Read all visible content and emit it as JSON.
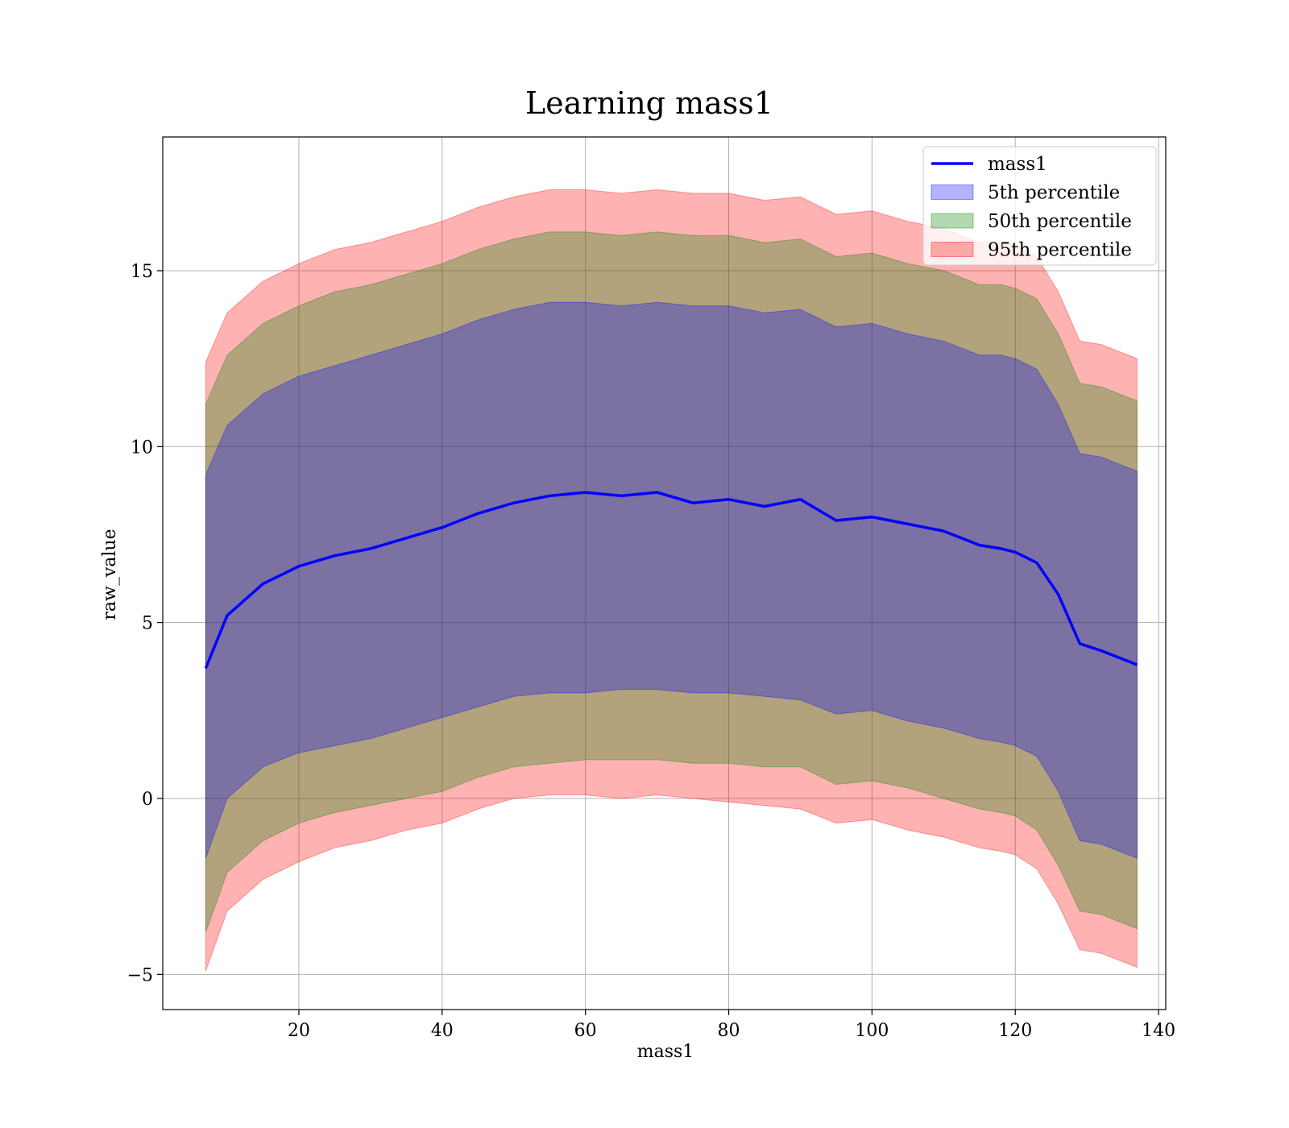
{
  "chart_data": {
    "type": "area",
    "title": "Learning mass1",
    "xlabel": "mass1",
    "ylabel": "raw_value",
    "xlim": [
      1,
      141
    ],
    "ylim": [
      -6,
      18.8
    ],
    "xticks": [
      20,
      40,
      60,
      80,
      100,
      120,
      140
    ],
    "xtick_labels": [
      "20",
      "40",
      "60",
      "80",
      "100",
      "120",
      "140"
    ],
    "yticks": [
      -5,
      0,
      5,
      10,
      15
    ],
    "ytick_labels": [
      "−5",
      "0",
      "5",
      "10",
      "15"
    ],
    "grid": true,
    "legend_position": "top-right",
    "x": [
      7,
      10,
      15,
      20,
      25,
      30,
      35,
      40,
      45,
      50,
      55,
      60,
      65,
      70,
      75,
      80,
      85,
      90,
      95,
      100,
      105,
      110,
      115,
      118,
      120,
      123,
      126,
      129,
      132,
      137
    ],
    "series": [
      {
        "name": "mass1",
        "kind": "line",
        "color": "#0000ff",
        "values": [
          3.7,
          5.2,
          6.1,
          6.6,
          6.9,
          7.1,
          7.4,
          7.7,
          8.1,
          8.4,
          8.6,
          8.7,
          8.6,
          8.7,
          8.4,
          8.5,
          8.3,
          8.5,
          7.9,
          8.0,
          7.8,
          7.6,
          7.2,
          7.1,
          7.0,
          6.7,
          5.8,
          4.4,
          4.2,
          3.8
        ]
      },
      {
        "name": "5th percentile",
        "kind": "band",
        "color": "#0000ff",
        "opacity": 0.3,
        "lower": [
          -1.7,
          0.0,
          0.9,
          1.3,
          1.5,
          1.7,
          2.0,
          2.3,
          2.6,
          2.9,
          3.0,
          3.0,
          3.1,
          3.1,
          3.0,
          3.0,
          2.9,
          2.8,
          2.4,
          2.5,
          2.2,
          2.0,
          1.7,
          1.6,
          1.5,
          1.2,
          0.2,
          -1.2,
          -1.3,
          -1.7
        ],
        "upper": [
          9.2,
          10.6,
          11.5,
          12.0,
          12.3,
          12.6,
          12.9,
          13.2,
          13.6,
          13.9,
          14.1,
          14.1,
          14.0,
          14.1,
          14.0,
          14.0,
          13.8,
          13.9,
          13.4,
          13.5,
          13.2,
          13.0,
          12.6,
          12.6,
          12.5,
          12.2,
          11.2,
          9.8,
          9.7,
          9.3
        ]
      },
      {
        "name": "50th percentile",
        "kind": "band",
        "color": "#008000",
        "opacity": 0.3,
        "lower": [
          -3.8,
          -2.1,
          -1.2,
          -0.7,
          -0.4,
          -0.2,
          0.0,
          0.2,
          0.6,
          0.9,
          1.0,
          1.1,
          1.1,
          1.1,
          1.0,
          1.0,
          0.9,
          0.9,
          0.4,
          0.5,
          0.3,
          0.0,
          -0.3,
          -0.4,
          -0.5,
          -0.9,
          -1.9,
          -3.2,
          -3.3,
          -3.7
        ],
        "upper": [
          11.2,
          12.6,
          13.5,
          14.0,
          14.4,
          14.6,
          14.9,
          15.2,
          15.6,
          15.9,
          16.1,
          16.1,
          16.0,
          16.1,
          16.0,
          16.0,
          15.8,
          15.9,
          15.4,
          15.5,
          15.2,
          15.0,
          14.6,
          14.6,
          14.5,
          14.2,
          13.2,
          11.8,
          11.7,
          11.3
        ]
      },
      {
        "name": "95th percentile",
        "kind": "band",
        "color": "#ff0000",
        "opacity": 0.3,
        "lower": [
          -4.9,
          -3.2,
          -2.3,
          -1.8,
          -1.4,
          -1.2,
          -0.9,
          -0.7,
          -0.3,
          0.0,
          0.1,
          0.1,
          0.0,
          0.1,
          0.0,
          -0.1,
          -0.2,
          -0.3,
          -0.7,
          -0.6,
          -0.9,
          -1.1,
          -1.4,
          -1.5,
          -1.6,
          -2.0,
          -3.0,
          -4.3,
          -4.4,
          -4.8
        ],
        "upper": [
          12.4,
          13.8,
          14.7,
          15.2,
          15.6,
          15.8,
          16.1,
          16.4,
          16.8,
          17.1,
          17.3,
          17.3,
          17.2,
          17.3,
          17.2,
          17.2,
          17.0,
          17.1,
          16.6,
          16.7,
          16.4,
          16.2,
          15.8,
          15.8,
          15.7,
          15.4,
          14.4,
          13.0,
          12.9,
          12.5
        ]
      }
    ]
  }
}
